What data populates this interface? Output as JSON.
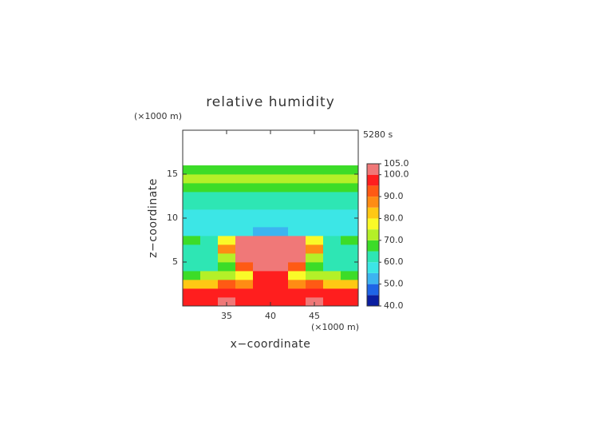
{
  "chart_data": {
    "type": "contour",
    "title": "relative humidity",
    "time_label": "5280 s",
    "x_label": "x−coordinate",
    "y_label": "z−coordinate",
    "x_unit": "(×1000 m)",
    "y_unit": "(×1000 m)",
    "xlim": [
      30,
      50
    ],
    "ylim": [
      0,
      20
    ],
    "xticks": [
      35,
      40,
      45
    ],
    "yticks": [
      5,
      10,
      15
    ],
    "x": [
      31,
      33,
      35,
      37,
      39,
      41,
      43,
      45,
      47,
      49
    ],
    "y": [
      0.5,
      1.5,
      2.5,
      3.5,
      4.5,
      5.5,
      6.5,
      7.5,
      8.5,
      9.5,
      10.5,
      11.5,
      12.5,
      13.5,
      14.5,
      15.5,
      16.5,
      17.5,
      18.5,
      19.5
    ],
    "z": [
      [
        98,
        98,
        102,
        98,
        98,
        98,
        98,
        102,
        98,
        96
      ],
      [
        96,
        97,
        96,
        98,
        95,
        95,
        98,
        96,
        97,
        96
      ],
      [
        82,
        80,
        92,
        88,
        96,
        96,
        88,
        92,
        80,
        82
      ],
      [
        68,
        70,
        74,
        78,
        95,
        95,
        78,
        74,
        70,
        68
      ],
      [
        63,
        64,
        68,
        92,
        101,
        101,
        92,
        68,
        64,
        63
      ],
      [
        61,
        62,
        72,
        101,
        102,
        102,
        101,
        72,
        62,
        61
      ],
      [
        62,
        63,
        86,
        102,
        102,
        102,
        102,
        86,
        63,
        62
      ],
      [
        66,
        64,
        76,
        101,
        102,
        102,
        101,
        76,
        64,
        66
      ],
      [
        58,
        58,
        58,
        56,
        54,
        54,
        56,
        58,
        58,
        58
      ],
      [
        56,
        56,
        56,
        56,
        56,
        56,
        56,
        56,
        56,
        56
      ],
      [
        57,
        57,
        57,
        57,
        57,
        57,
        57,
        57,
        57,
        57
      ],
      [
        60,
        60,
        60,
        60,
        60,
        60,
        60,
        60,
        60,
        60
      ],
      [
        62,
        62,
        62,
        62,
        62,
        62,
        62,
        62,
        62,
        62
      ],
      [
        66,
        66,
        66,
        66,
        66,
        66,
        66,
        66,
        66,
        66
      ],
      [
        72,
        72,
        72,
        72,
        72,
        72,
        72,
        72,
        72,
        72
      ],
      [
        68,
        68,
        68,
        68,
        68,
        68,
        68,
        68,
        68,
        68
      ],
      [
        null,
        null,
        null,
        null,
        null,
        null,
        null,
        null,
        null,
        null
      ],
      [
        null,
        null,
        null,
        null,
        null,
        null,
        null,
        null,
        null,
        null
      ],
      [
        null,
        null,
        null,
        null,
        null,
        null,
        null,
        null,
        null,
        null
      ],
      [
        null,
        null,
        null,
        null,
        null,
        null,
        null,
        null,
        null,
        null
      ]
    ],
    "levels": [
      40,
      45,
      50,
      55,
      60,
      65,
      70,
      75,
      80,
      85,
      90,
      95,
      100,
      105
    ],
    "colors": [
      "#0a1ea0",
      "#1e64e6",
      "#3cb4f0",
      "#3ce6e6",
      "#2ee6b4",
      "#3cdc28",
      "#b4f028",
      "#fafa28",
      "#ffc814",
      "#ff8c14",
      "#ff5a14",
      "#ff1e1e",
      "#f07878"
    ],
    "colorbar_ticks": [
      {
        "value": 40,
        "label": "40.0"
      },
      {
        "value": 50,
        "label": "50.0"
      },
      {
        "value": 60,
        "label": "60.0"
      },
      {
        "value": 70,
        "label": "70.0"
      },
      {
        "value": 80,
        "label": "80.0"
      },
      {
        "value": 90,
        "label": "90.0"
      },
      {
        "value": 100,
        "label": "100.0"
      },
      {
        "value": 105,
        "label": "105.0"
      }
    ]
  }
}
